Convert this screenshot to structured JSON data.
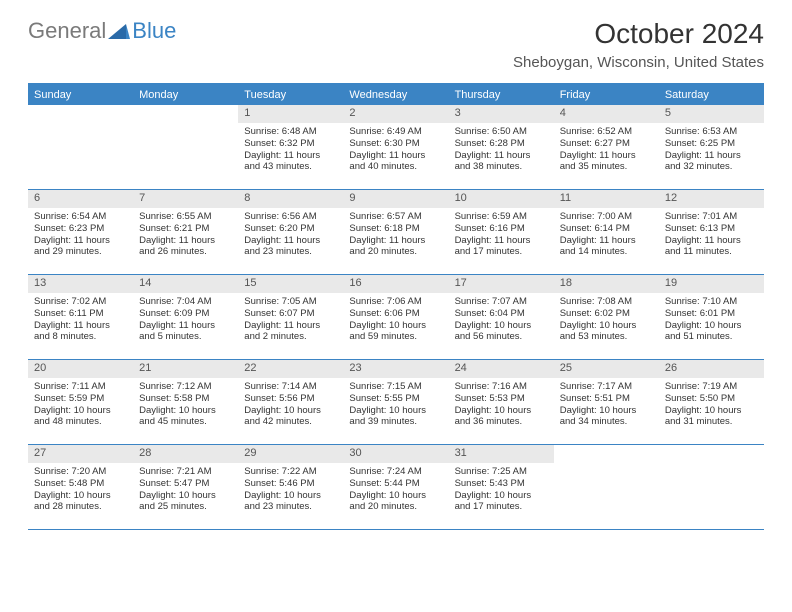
{
  "logo": {
    "general": "General",
    "blue": "Blue"
  },
  "title": "October 2024",
  "location": "Sheboygan, Wisconsin, United States",
  "colors": {
    "accent": "#3b84c4",
    "day_header_bg": "#e9e9e9",
    "text": "#333333",
    "logo_gray": "#7a7a7a"
  },
  "days_of_week": [
    "Sunday",
    "Monday",
    "Tuesday",
    "Wednesday",
    "Thursday",
    "Friday",
    "Saturday"
  ],
  "weeks": [
    [
      {
        "n": "",
        "sunrise": "",
        "sunset": "",
        "daylight": "",
        "empty": true
      },
      {
        "n": "",
        "sunrise": "",
        "sunset": "",
        "daylight": "",
        "empty": true
      },
      {
        "n": "1",
        "sunrise": "Sunrise: 6:48 AM",
        "sunset": "Sunset: 6:32 PM",
        "daylight": "Daylight: 11 hours and 43 minutes."
      },
      {
        "n": "2",
        "sunrise": "Sunrise: 6:49 AM",
        "sunset": "Sunset: 6:30 PM",
        "daylight": "Daylight: 11 hours and 40 minutes."
      },
      {
        "n": "3",
        "sunrise": "Sunrise: 6:50 AM",
        "sunset": "Sunset: 6:28 PM",
        "daylight": "Daylight: 11 hours and 38 minutes."
      },
      {
        "n": "4",
        "sunrise": "Sunrise: 6:52 AM",
        "sunset": "Sunset: 6:27 PM",
        "daylight": "Daylight: 11 hours and 35 minutes."
      },
      {
        "n": "5",
        "sunrise": "Sunrise: 6:53 AM",
        "sunset": "Sunset: 6:25 PM",
        "daylight": "Daylight: 11 hours and 32 minutes."
      }
    ],
    [
      {
        "n": "6",
        "sunrise": "Sunrise: 6:54 AM",
        "sunset": "Sunset: 6:23 PM",
        "daylight": "Daylight: 11 hours and 29 minutes."
      },
      {
        "n": "7",
        "sunrise": "Sunrise: 6:55 AM",
        "sunset": "Sunset: 6:21 PM",
        "daylight": "Daylight: 11 hours and 26 minutes."
      },
      {
        "n": "8",
        "sunrise": "Sunrise: 6:56 AM",
        "sunset": "Sunset: 6:20 PM",
        "daylight": "Daylight: 11 hours and 23 minutes."
      },
      {
        "n": "9",
        "sunrise": "Sunrise: 6:57 AM",
        "sunset": "Sunset: 6:18 PM",
        "daylight": "Daylight: 11 hours and 20 minutes."
      },
      {
        "n": "10",
        "sunrise": "Sunrise: 6:59 AM",
        "sunset": "Sunset: 6:16 PM",
        "daylight": "Daylight: 11 hours and 17 minutes."
      },
      {
        "n": "11",
        "sunrise": "Sunrise: 7:00 AM",
        "sunset": "Sunset: 6:14 PM",
        "daylight": "Daylight: 11 hours and 14 minutes."
      },
      {
        "n": "12",
        "sunrise": "Sunrise: 7:01 AM",
        "sunset": "Sunset: 6:13 PM",
        "daylight": "Daylight: 11 hours and 11 minutes."
      }
    ],
    [
      {
        "n": "13",
        "sunrise": "Sunrise: 7:02 AM",
        "sunset": "Sunset: 6:11 PM",
        "daylight": "Daylight: 11 hours and 8 minutes."
      },
      {
        "n": "14",
        "sunrise": "Sunrise: 7:04 AM",
        "sunset": "Sunset: 6:09 PM",
        "daylight": "Daylight: 11 hours and 5 minutes."
      },
      {
        "n": "15",
        "sunrise": "Sunrise: 7:05 AM",
        "sunset": "Sunset: 6:07 PM",
        "daylight": "Daylight: 11 hours and 2 minutes."
      },
      {
        "n": "16",
        "sunrise": "Sunrise: 7:06 AM",
        "sunset": "Sunset: 6:06 PM",
        "daylight": "Daylight: 10 hours and 59 minutes."
      },
      {
        "n": "17",
        "sunrise": "Sunrise: 7:07 AM",
        "sunset": "Sunset: 6:04 PM",
        "daylight": "Daylight: 10 hours and 56 minutes."
      },
      {
        "n": "18",
        "sunrise": "Sunrise: 7:08 AM",
        "sunset": "Sunset: 6:02 PM",
        "daylight": "Daylight: 10 hours and 53 minutes."
      },
      {
        "n": "19",
        "sunrise": "Sunrise: 7:10 AM",
        "sunset": "Sunset: 6:01 PM",
        "daylight": "Daylight: 10 hours and 51 minutes."
      }
    ],
    [
      {
        "n": "20",
        "sunrise": "Sunrise: 7:11 AM",
        "sunset": "Sunset: 5:59 PM",
        "daylight": "Daylight: 10 hours and 48 minutes."
      },
      {
        "n": "21",
        "sunrise": "Sunrise: 7:12 AM",
        "sunset": "Sunset: 5:58 PM",
        "daylight": "Daylight: 10 hours and 45 minutes."
      },
      {
        "n": "22",
        "sunrise": "Sunrise: 7:14 AM",
        "sunset": "Sunset: 5:56 PM",
        "daylight": "Daylight: 10 hours and 42 minutes."
      },
      {
        "n": "23",
        "sunrise": "Sunrise: 7:15 AM",
        "sunset": "Sunset: 5:55 PM",
        "daylight": "Daylight: 10 hours and 39 minutes."
      },
      {
        "n": "24",
        "sunrise": "Sunrise: 7:16 AM",
        "sunset": "Sunset: 5:53 PM",
        "daylight": "Daylight: 10 hours and 36 minutes."
      },
      {
        "n": "25",
        "sunrise": "Sunrise: 7:17 AM",
        "sunset": "Sunset: 5:51 PM",
        "daylight": "Daylight: 10 hours and 34 minutes."
      },
      {
        "n": "26",
        "sunrise": "Sunrise: 7:19 AM",
        "sunset": "Sunset: 5:50 PM",
        "daylight": "Daylight: 10 hours and 31 minutes."
      }
    ],
    [
      {
        "n": "27",
        "sunrise": "Sunrise: 7:20 AM",
        "sunset": "Sunset: 5:48 PM",
        "daylight": "Daylight: 10 hours and 28 minutes."
      },
      {
        "n": "28",
        "sunrise": "Sunrise: 7:21 AM",
        "sunset": "Sunset: 5:47 PM",
        "daylight": "Daylight: 10 hours and 25 minutes."
      },
      {
        "n": "29",
        "sunrise": "Sunrise: 7:22 AM",
        "sunset": "Sunset: 5:46 PM",
        "daylight": "Daylight: 10 hours and 23 minutes."
      },
      {
        "n": "30",
        "sunrise": "Sunrise: 7:24 AM",
        "sunset": "Sunset: 5:44 PM",
        "daylight": "Daylight: 10 hours and 20 minutes."
      },
      {
        "n": "31",
        "sunrise": "Sunrise: 7:25 AM",
        "sunset": "Sunset: 5:43 PM",
        "daylight": "Daylight: 10 hours and 17 minutes."
      },
      {
        "n": "",
        "sunrise": "",
        "sunset": "",
        "daylight": "",
        "empty": true
      },
      {
        "n": "",
        "sunrise": "",
        "sunset": "",
        "daylight": "",
        "empty": true
      }
    ]
  ]
}
